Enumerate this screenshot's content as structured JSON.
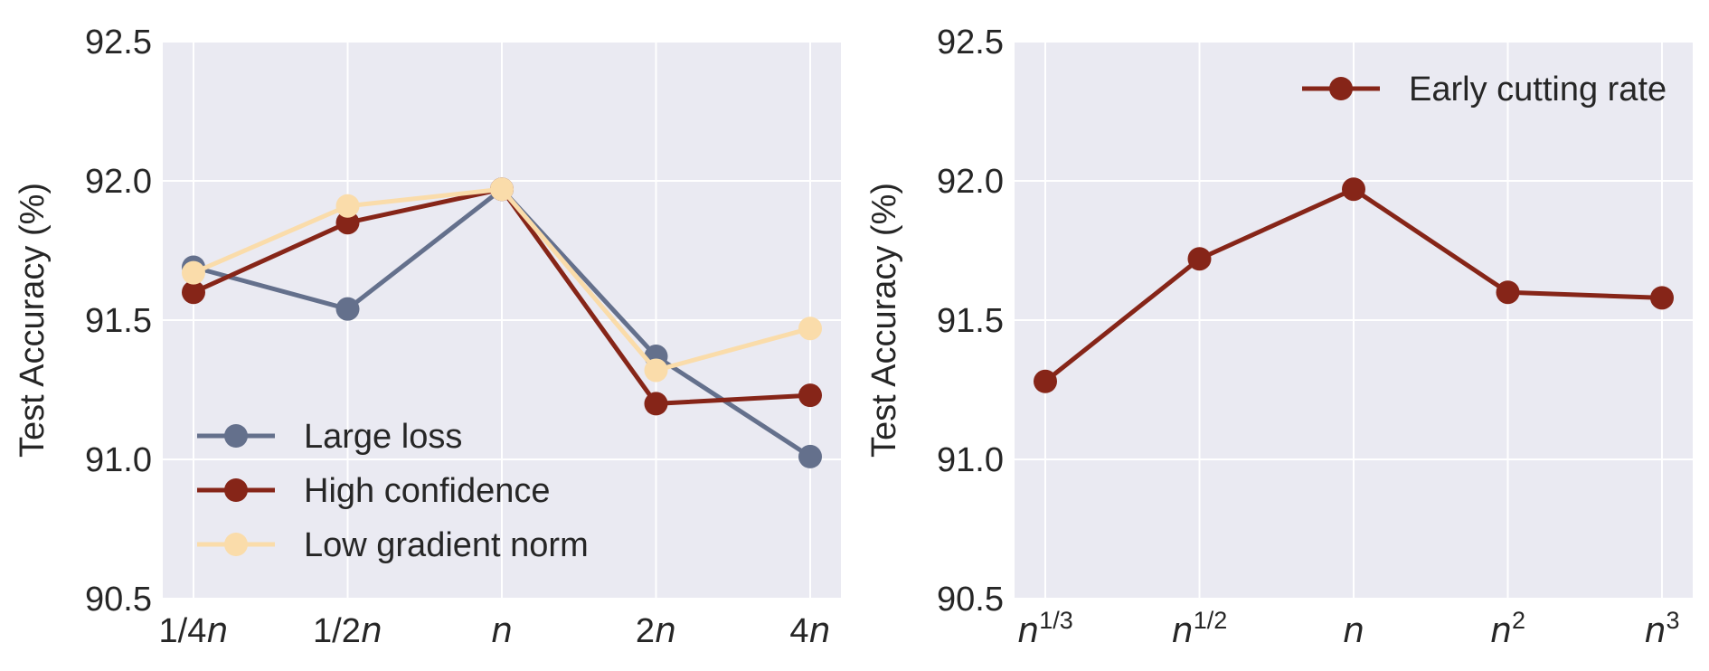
{
  "colors": {
    "panel_bg": "#eaeaf2",
    "grid": "#ffffff",
    "large_loss": "#64708c",
    "high_confidence": "#862518",
    "low_gradient_norm": "#fadcaa"
  },
  "chart_data": [
    {
      "type": "line",
      "title": "",
      "xlabel": "",
      "ylabel": "Test Accuracy (%)",
      "ylim": [
        90.5,
        92.5
      ],
      "yticks": [
        "90.5",
        "91.0",
        "91.5",
        "92.0",
        "92.5"
      ],
      "categories": [
        "1/4n",
        "1/2n",
        "n",
        "2n",
        "4n"
      ],
      "grid": true,
      "legend_position": "bottom-left",
      "series": [
        {
          "name": "Large loss",
          "color_key": "large_loss",
          "values": [
            91.69,
            91.54,
            91.97,
            91.37,
            91.01
          ]
        },
        {
          "name": "High confidence",
          "color_key": "high_confidence",
          "values": [
            91.6,
            91.85,
            91.97,
            91.2,
            91.23
          ]
        },
        {
          "name": "Low gradient norm",
          "color_key": "low_gradient_norm",
          "values": [
            91.67,
            91.91,
            91.97,
            91.32,
            91.47
          ]
        }
      ]
    },
    {
      "type": "line",
      "title": "",
      "xlabel": "",
      "ylabel": "Test Accuracy (%)",
      "ylim": [
        90.5,
        92.5
      ],
      "yticks": [
        "90.5",
        "91.0",
        "91.5",
        "92.0",
        "92.5"
      ],
      "categories": [
        "n^1/3",
        "n^1/2",
        "n",
        "n^2",
        "n^3"
      ],
      "grid": true,
      "legend_position": "top-right",
      "series": [
        {
          "name": "Early cutting rate",
          "color_key": "high_confidence",
          "values": [
            91.28,
            91.72,
            91.97,
            91.6,
            91.58
          ]
        }
      ]
    }
  ]
}
